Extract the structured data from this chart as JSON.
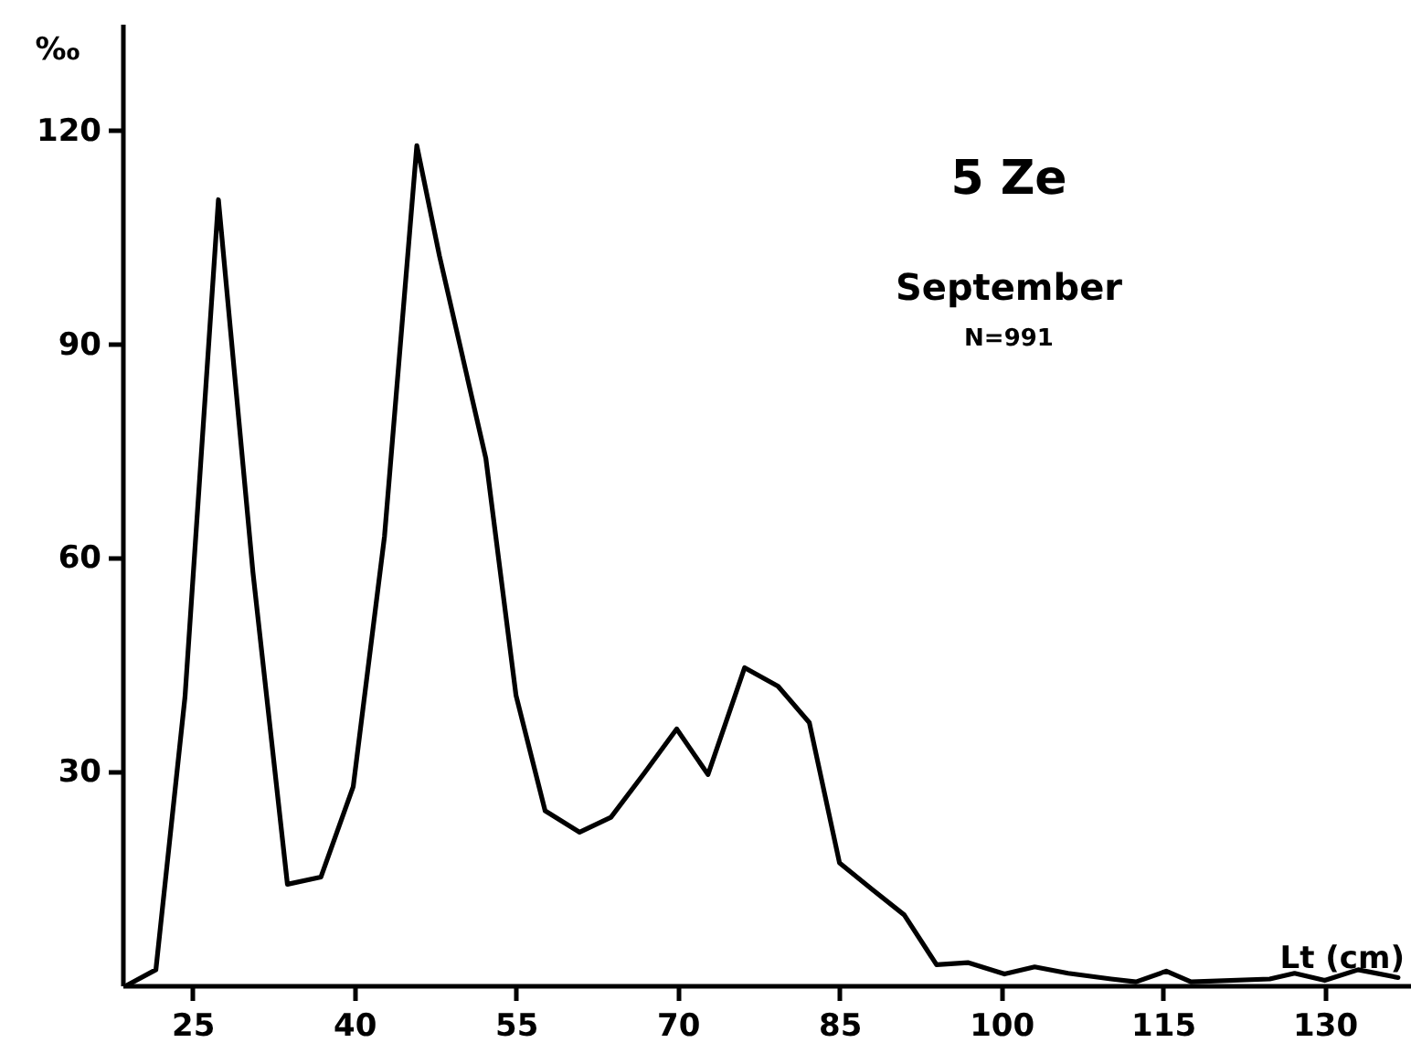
{
  "chart_data": {
    "type": "line",
    "title": "5 Ze",
    "subtitle": "September",
    "annotations": [
      "N=991"
    ],
    "xlabel": "Lt (cm)",
    "ylabel": "‰",
    "x": [
      18.9,
      21.6,
      24.3,
      27.4,
      30.6,
      33.8,
      36.9,
      39.9,
      42.8,
      45.8,
      47.9,
      52.2,
      55.0,
      57.7,
      60.9,
      63.8,
      66.9,
      69.9,
      72.8,
      76.2,
      79.3,
      82.2,
      85.0,
      88.0,
      91.0,
      94.0,
      96.9,
      100.3,
      103.1,
      106.2,
      110.2,
      112.5,
      115.3,
      117.6,
      124.9,
      127.2,
      130.0,
      133.1,
      136.8
    ],
    "series": [
      {
        "color": "#000000",
        "values": [
          0,
          2.2,
          40.5,
          110.3,
          58,
          14.2,
          15.2,
          27.9,
          63,
          117.9,
          102.4,
          74,
          40.7,
          24.5,
          21.5,
          23.6,
          29.8,
          36,
          29.6,
          44.6,
          42,
          36.9,
          17.2,
          13.5,
          9.9,
          2.9,
          3.2,
          1.6,
          2.6,
          1.7,
          0.9,
          0.5,
          2,
          0.5,
          0.9,
          1.7,
          0.7,
          2.2,
          1.1
        ]
      }
    ],
    "xlim": [
      18.5,
      138
    ],
    "xticks": [
      25,
      40,
      55,
      70,
      85,
      100,
      115,
      130
    ],
    "ylim": [
      0,
      135
    ],
    "yticks": [
      30,
      60,
      90,
      120
    ],
    "grid": false,
    "marker": "none",
    "line_style": "solid"
  }
}
